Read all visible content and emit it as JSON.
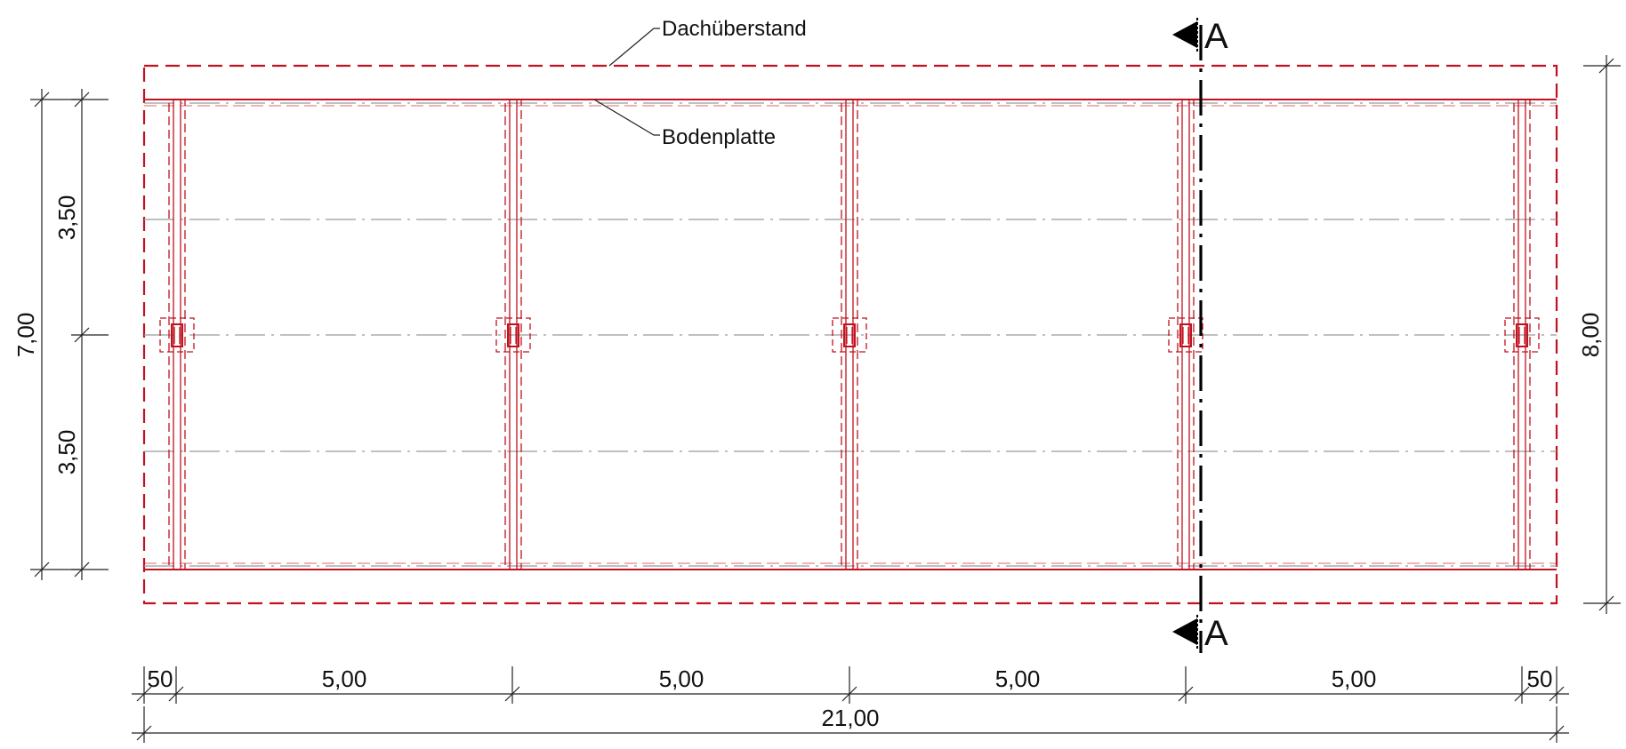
{
  "callouts": {
    "roof_overhang": "Dachüberstand",
    "floor_slab": "Bodenplatte"
  },
  "section_marker": {
    "label_top": "A",
    "label_bottom": "A"
  },
  "dimensions": {
    "bottom_segments": [
      "50",
      "5,00",
      "5,00",
      "5,00",
      "5,00",
      "50"
    ],
    "bottom_total": "21,00",
    "left_segments": [
      "3,50",
      "3,50"
    ],
    "left_total": "7,00",
    "right_total": "8,00"
  },
  "colors": {
    "structure_red": "#c1121f",
    "grid_gray": "#9a9a9a",
    "section_line": "#000000",
    "dimension_line": "#222222"
  }
}
